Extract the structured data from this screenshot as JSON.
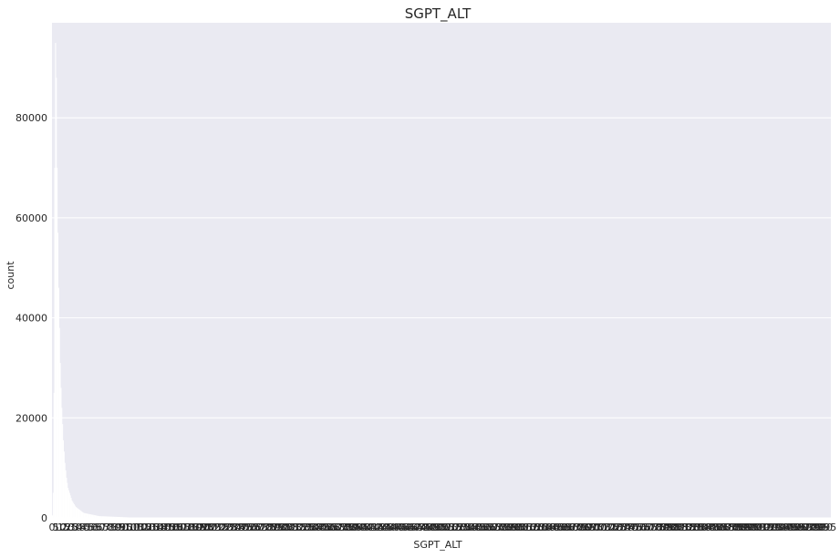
{
  "chart_data": {
    "type": "bar",
    "title": "SGPT_ALT",
    "xlabel": "SGPT_ALT",
    "ylabel": "count",
    "ylim": [
      0,
      99000
    ],
    "yticks": [
      0,
      20000,
      40000,
      60000,
      80000
    ],
    "grid": true,
    "legend": "none",
    "bar_count": 1000,
    "peak_value": 95000,
    "series_approx": [
      {
        "x": 0,
        "y": 500
      },
      {
        "x": 1,
        "y": 5000
      },
      {
        "x": 2,
        "y": 25000
      },
      {
        "x": 3,
        "y": 70000
      },
      {
        "x": 4,
        "y": 95000
      },
      {
        "x": 5,
        "y": 88000
      },
      {
        "x": 6,
        "y": 70000
      },
      {
        "x": 7,
        "y": 57000
      },
      {
        "x": 8,
        "y": 46000
      },
      {
        "x": 9,
        "y": 38000
      },
      {
        "x": 10,
        "y": 31000
      },
      {
        "x": 11,
        "y": 26000
      },
      {
        "x": 12,
        "y": 22000
      },
      {
        "x": 14,
        "y": 15500
      },
      {
        "x": 16,
        "y": 11000
      },
      {
        "x": 18,
        "y": 8000
      },
      {
        "x": 20,
        "y": 6000
      },
      {
        "x": 25,
        "y": 3500
      },
      {
        "x": 30,
        "y": 2200
      },
      {
        "x": 40,
        "y": 1000
      },
      {
        "x": 60,
        "y": 350
      },
      {
        "x": 100,
        "y": 80
      },
      {
        "x": 200,
        "y": 10
      },
      {
        "x": 999,
        "y": 1
      }
    ],
    "colors": {
      "background": "#eaeaf2",
      "grid": "#ffffff",
      "bars": "#ffffff",
      "text": "#262626",
      "tick_label_overlap": "#262626"
    }
  }
}
